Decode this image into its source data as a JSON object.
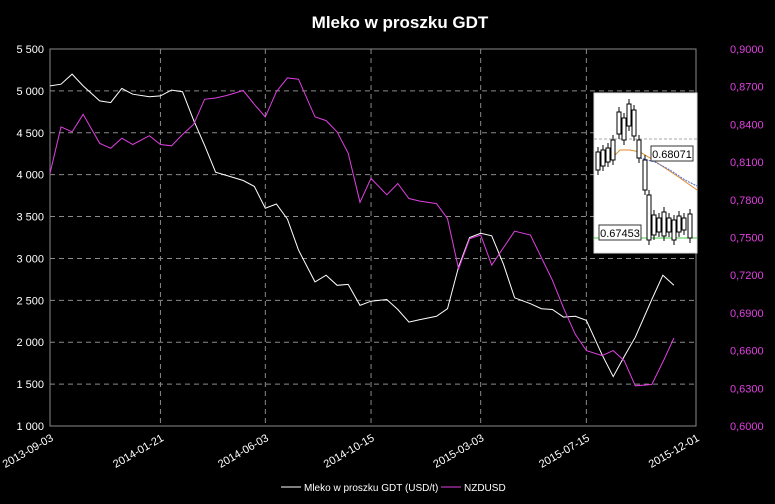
{
  "chart_data": {
    "type": "line",
    "title": "Mleko w proszku GDT",
    "x_ticks": [
      "2013-09-03",
      "2014-01-21",
      "2014-06-03",
      "2014-10-15",
      "2015-03-03",
      "2015-07-15",
      "2015-12-01"
    ],
    "y_left": {
      "ticks": [
        "1 000",
        "1 500",
        "2 000",
        "2 500",
        "3 000",
        "3 500",
        "4 000",
        "4 500",
        "5 000",
        "5 500"
      ],
      "ylim": [
        1000,
        5500
      ]
    },
    "y_right": {
      "ticks": [
        "0,6000",
        "0,6300",
        "0,6600",
        "0,6900",
        "0,7200",
        "0,7500",
        "0,7800",
        "0,8100",
        "0,8400",
        "0,8700",
        "0,9000"
      ],
      "ylim": [
        0.6,
        0.9
      ]
    },
    "xlim": [
      "2013-09-03",
      "2015-12-01"
    ],
    "grid": true,
    "legend_position": "bottom",
    "colors": {
      "milk": "#ffffff",
      "nzdusd": "#e040e0",
      "grid": "#8a8a8a",
      "background": "#000000"
    },
    "series": [
      {
        "name": "Mleko w proszku GDT (USD/t)",
        "axis": "left",
        "points": [
          [
            "2013-09-03",
            5060
          ],
          [
            "2013-09-17",
            5080
          ],
          [
            "2013-10-01",
            5200
          ],
          [
            "2013-10-15",
            5060
          ],
          [
            "2013-11-05",
            4880
          ],
          [
            "2013-11-19",
            4860
          ],
          [
            "2013-12-03",
            5030
          ],
          [
            "2013-12-17",
            4960
          ],
          [
            "2014-01-07",
            4930
          ],
          [
            "2014-01-21",
            4940
          ],
          [
            "2014-02-04",
            5010
          ],
          [
            "2014-02-18",
            4990
          ],
          [
            "2014-03-04",
            4650
          ],
          [
            "2014-03-18",
            4350
          ],
          [
            "2014-04-01",
            4030
          ],
          [
            "2014-04-15",
            3990
          ],
          [
            "2014-05-06",
            3930
          ],
          [
            "2014-05-20",
            3860
          ],
          [
            "2014-06-03",
            3600
          ],
          [
            "2014-06-17",
            3650
          ],
          [
            "2014-07-01",
            3470
          ],
          [
            "2014-07-15",
            3100
          ],
          [
            "2014-08-05",
            2720
          ],
          [
            "2014-08-19",
            2800
          ],
          [
            "2014-09-02",
            2680
          ],
          [
            "2014-09-16",
            2690
          ],
          [
            "2014-10-01",
            2440
          ],
          [
            "2014-10-15",
            2490
          ],
          [
            "2014-11-04",
            2510
          ],
          [
            "2014-11-18",
            2390
          ],
          [
            "2014-12-02",
            2240
          ],
          [
            "2014-12-16",
            2270
          ],
          [
            "2015-01-06",
            2310
          ],
          [
            "2015-01-20",
            2400
          ],
          [
            "2015-02-03",
            2900
          ],
          [
            "2015-02-17",
            3250
          ],
          [
            "2015-03-03",
            3300
          ],
          [
            "2015-03-17",
            3270
          ],
          [
            "2015-04-01",
            2930
          ],
          [
            "2015-04-15",
            2530
          ],
          [
            "2015-05-05",
            2460
          ],
          [
            "2015-05-19",
            2400
          ],
          [
            "2015-06-02",
            2390
          ],
          [
            "2015-06-16",
            2300
          ],
          [
            "2015-07-01",
            2310
          ],
          [
            "2015-07-15",
            2260
          ],
          [
            "2015-08-04",
            1850
          ],
          [
            "2015-08-18",
            1590
          ],
          [
            "2015-09-01",
            1830
          ],
          [
            "2015-09-15",
            2060
          ],
          [
            "2015-10-06",
            2510
          ],
          [
            "2015-10-20",
            2800
          ],
          [
            "2015-11-03",
            2680
          ]
        ]
      },
      {
        "name": "NZDUSD",
        "axis": "right",
        "points": [
          [
            "2013-09-03",
            0.801
          ],
          [
            "2013-09-17",
            0.838
          ],
          [
            "2013-10-01",
            0.834
          ],
          [
            "2013-10-15",
            0.848
          ],
          [
            "2013-11-05",
            0.825
          ],
          [
            "2013-11-19",
            0.821
          ],
          [
            "2013-12-03",
            0.829
          ],
          [
            "2013-12-17",
            0.824
          ],
          [
            "2014-01-07",
            0.831
          ],
          [
            "2014-01-21",
            0.824
          ],
          [
            "2014-02-04",
            0.823
          ],
          [
            "2014-02-18",
            0.832
          ],
          [
            "2014-03-04",
            0.84
          ],
          [
            "2014-03-18",
            0.86
          ],
          [
            "2014-04-01",
            0.861
          ],
          [
            "2014-04-15",
            0.863
          ],
          [
            "2014-05-06",
            0.867
          ],
          [
            "2014-05-20",
            0.856
          ],
          [
            "2014-06-03",
            0.846
          ],
          [
            "2014-06-17",
            0.866
          ],
          [
            "2014-07-01",
            0.877
          ],
          [
            "2014-07-15",
            0.876
          ],
          [
            "2014-08-05",
            0.846
          ],
          [
            "2014-08-19",
            0.843
          ],
          [
            "2014-09-02",
            0.834
          ],
          [
            "2014-09-16",
            0.817
          ],
          [
            "2014-10-01",
            0.778
          ],
          [
            "2014-10-15",
            0.797
          ],
          [
            "2014-11-04",
            0.784
          ],
          [
            "2014-11-18",
            0.793
          ],
          [
            "2014-12-02",
            0.781
          ],
          [
            "2014-12-16",
            0.779
          ],
          [
            "2015-01-06",
            0.777
          ],
          [
            "2015-01-20",
            0.765
          ],
          [
            "2015-02-03",
            0.725
          ],
          [
            "2015-02-17",
            0.749
          ],
          [
            "2015-03-03",
            0.752
          ],
          [
            "2015-03-17",
            0.728
          ],
          [
            "2015-04-01",
            0.742
          ],
          [
            "2015-04-15",
            0.755
          ],
          [
            "2015-05-05",
            0.752
          ],
          [
            "2015-05-19",
            0.734
          ],
          [
            "2015-06-02",
            0.716
          ],
          [
            "2015-06-16",
            0.694
          ],
          [
            "2015-07-01",
            0.673
          ],
          [
            "2015-07-15",
            0.66
          ],
          [
            "2015-08-04",
            0.656
          ],
          [
            "2015-08-18",
            0.66
          ],
          [
            "2015-09-01",
            0.652
          ],
          [
            "2015-09-15",
            0.632
          ],
          [
            "2015-10-06",
            0.633
          ],
          [
            "2015-10-20",
            0.651
          ],
          [
            "2015-11-03",
            0.67
          ]
        ]
      }
    ],
    "inset": {
      "type": "candlestick",
      "upper_label": "0.68071",
      "lower_label": "0.67453",
      "colors": {
        "upper_line": "#aaaaaa",
        "lower_line": "#44cc44",
        "ma_orange": "#e08a2a",
        "ma_blue": "#4a6ad8"
      }
    }
  }
}
